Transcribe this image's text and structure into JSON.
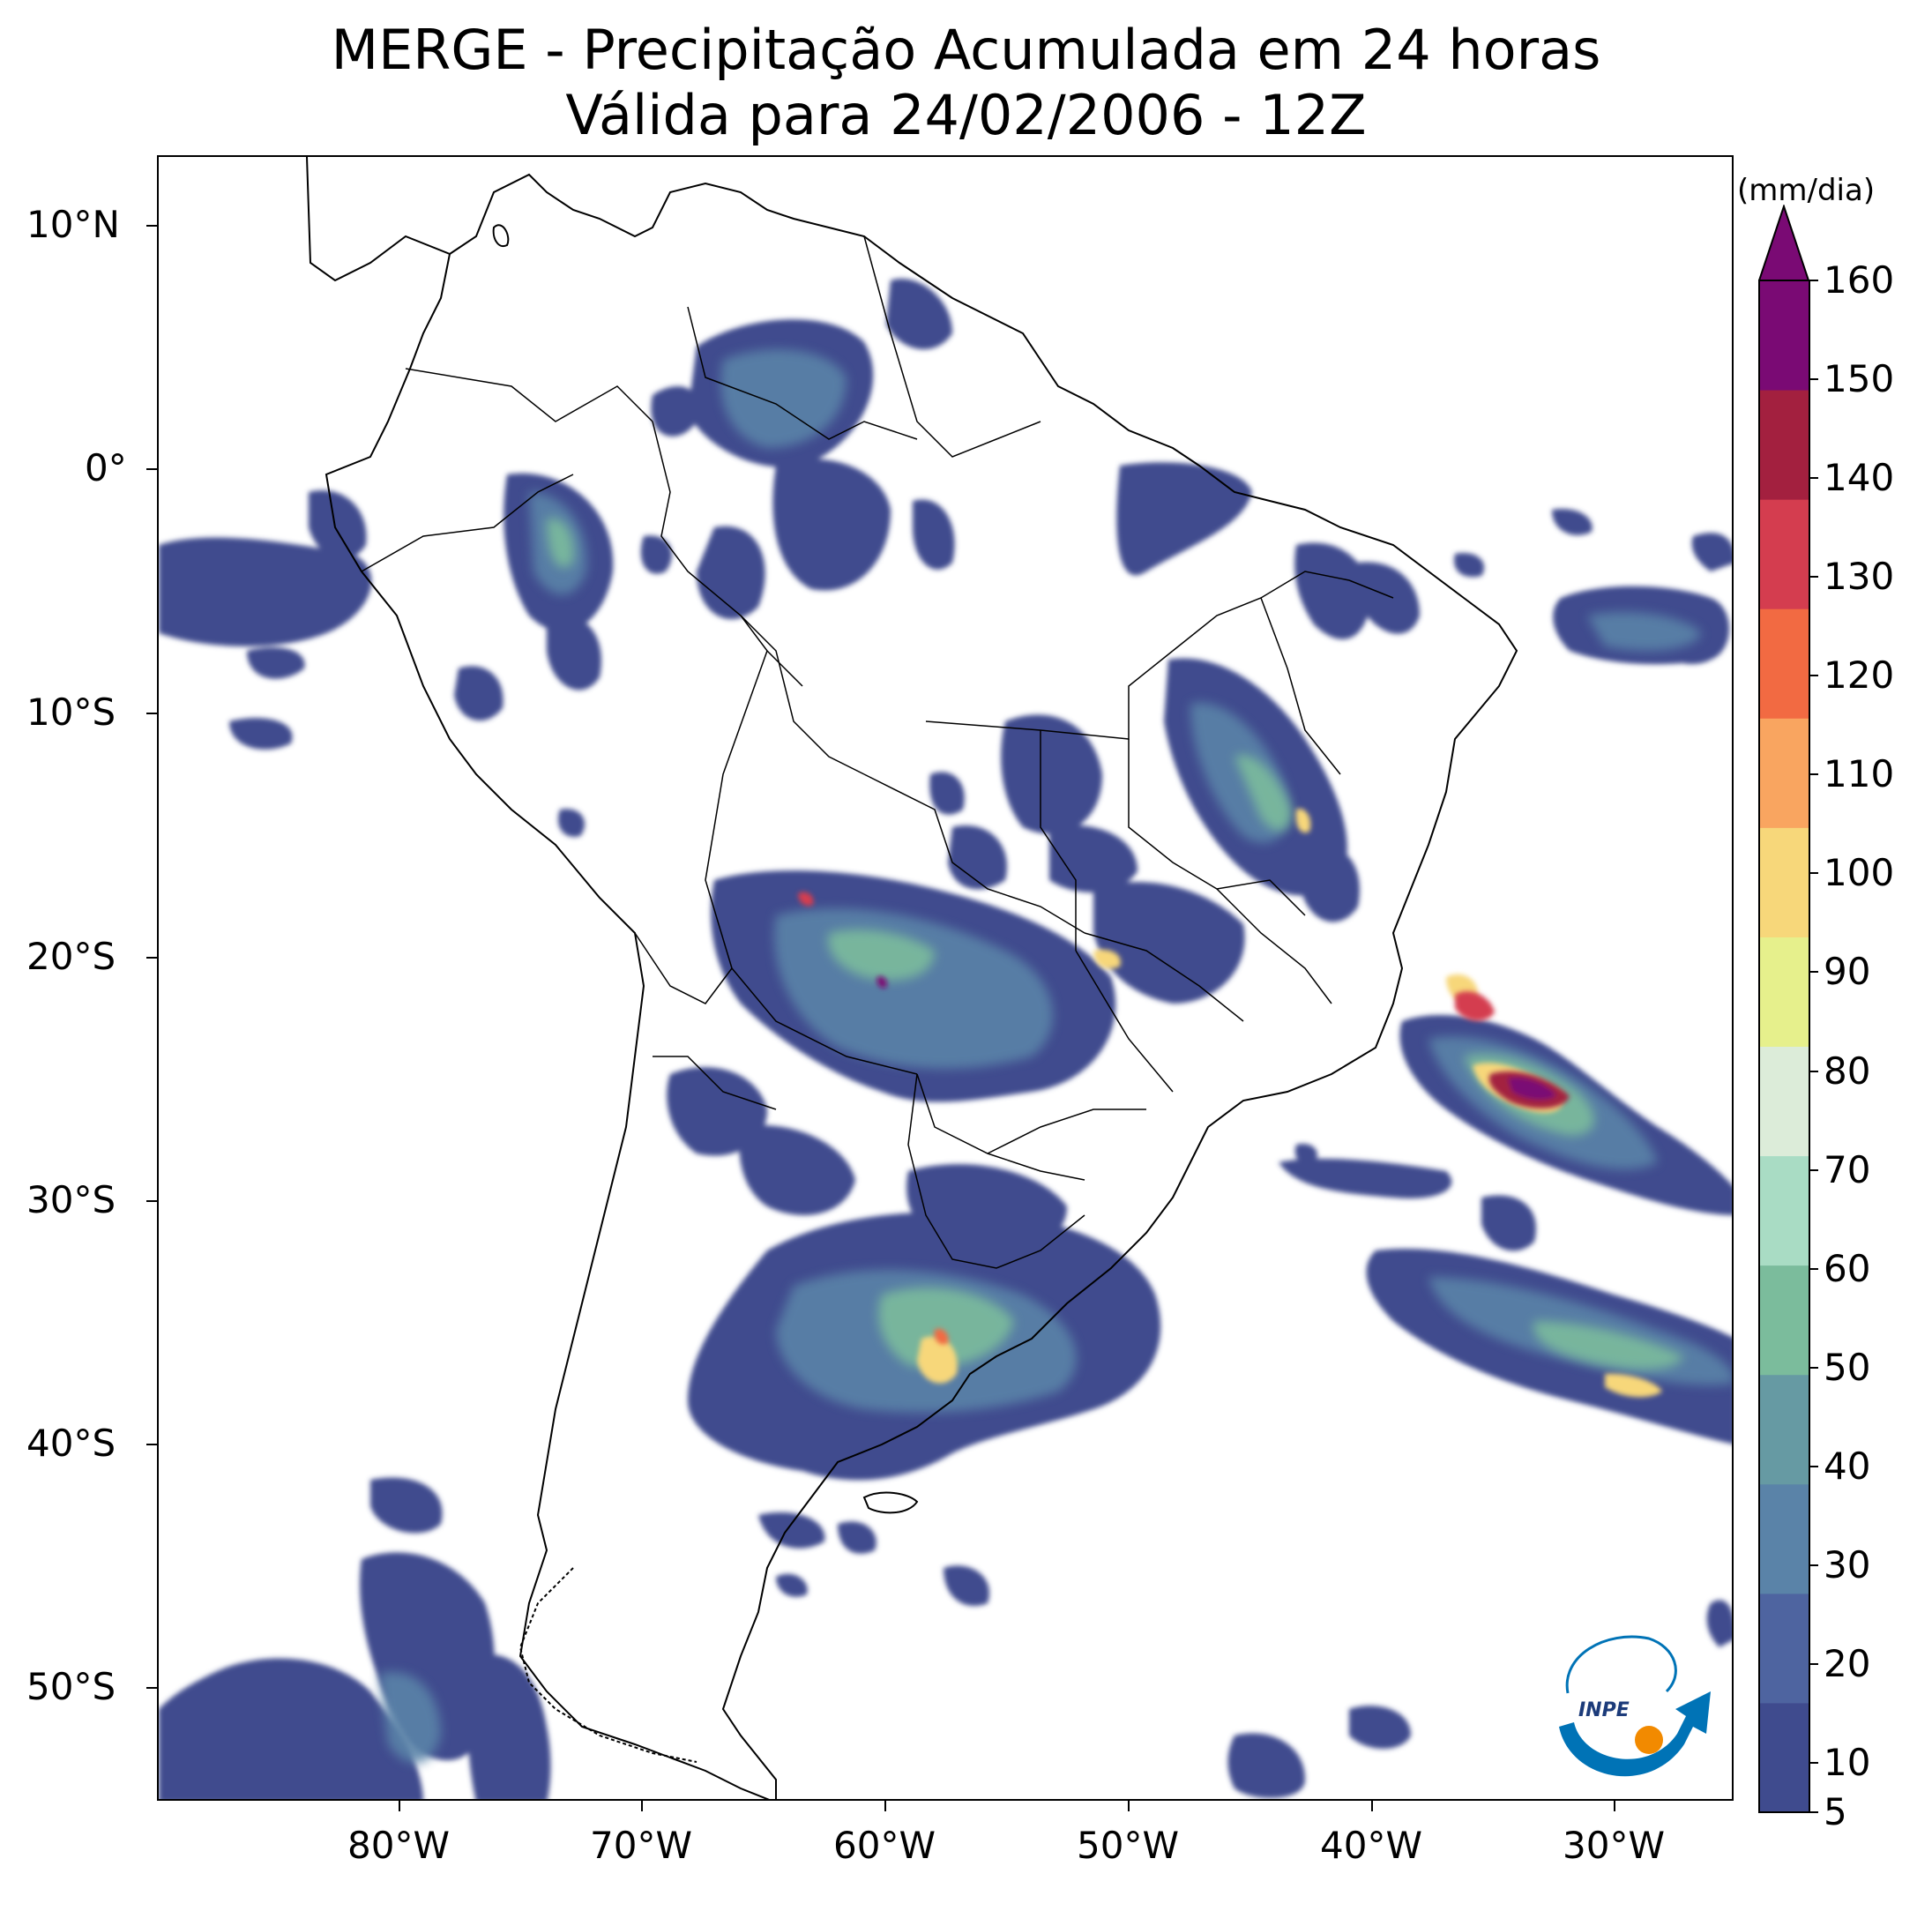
{
  "title": {
    "line1": "MERGE - Precipitação Acumulada em 24 horas",
    "line2": "Válida para 24/02/2006 - 12Z"
  },
  "axes": {
    "lon_ticks": [
      "80°W",
      "70°W",
      "60°W",
      "50°W",
      "40°W",
      "30°W"
    ],
    "lat_ticks": [
      "10°N",
      "0°",
      "10°S",
      "20°S",
      "30°S",
      "40°S",
      "50°S"
    ],
    "lon_range": [
      -90,
      -25
    ],
    "lat_range": [
      -56,
      13
    ]
  },
  "colorbar": {
    "unit": "(mm/dia)",
    "ticks": [
      "5",
      "10",
      "20",
      "30",
      "40",
      "50",
      "60",
      "70",
      "80",
      "90",
      "100",
      "110",
      "120",
      "130",
      "140",
      "150",
      "160"
    ],
    "extend": "max",
    "colors_low_to_high": [
      "#3f4b8e",
      "#4e64a0",
      "#5a83a8",
      "#669aa3",
      "#7bbc9c",
      "#a9dcc4",
      "#dcecd9",
      "#e6f08c",
      "#f7d77a",
      "#f9a560",
      "#f26a42",
      "#d43d4f",
      "#a3203f",
      "#7a0a74"
    ]
  },
  "logo": {
    "text": "INPE",
    "colors": {
      "blue": "#0073b6",
      "orange": "#f28a00"
    }
  }
}
